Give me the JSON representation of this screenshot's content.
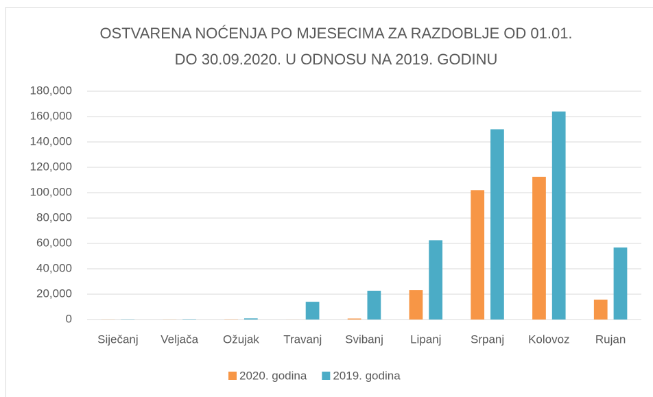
{
  "chart_data": {
    "type": "bar",
    "title": [
      "OSTVARENA NOĆENJA PO MJESECIMA ZA RAZDOBLJE OD 01.01.",
      "DO 30.09.2020. U ODNOSU NA 2019. GODINU"
    ],
    "categories": [
      "Siječanj",
      "Veljača",
      "Ožujak",
      "Travanj",
      "Svibanj",
      "Lipanj",
      "Srpanj",
      "Kolovoz",
      "Rujan"
    ],
    "series": [
      {
        "name": "2020. godina",
        "color": "#f79646",
        "values": [
          100,
          100,
          200,
          50,
          800,
          23200,
          102000,
          112500,
          15700
        ]
      },
      {
        "name": "2019. godina",
        "color": "#4bacc6",
        "values": [
          200,
          300,
          900,
          14000,
          22700,
          62500,
          150000,
          164000,
          56800
        ]
      }
    ],
    "ylim": [
      0,
      180000
    ],
    "yticks": [
      0,
      {
        "value": 20000,
        "label": "20,000"
      },
      {
        "value": 40000,
        "label": "40,000"
      },
      {
        "value": 60000,
        "label": "60,000"
      },
      {
        "value": 80000,
        "label": "80,000"
      },
      {
        "value": 100000,
        "label": "100,000"
      },
      {
        "value": 120000,
        "label": "120,000"
      },
      {
        "value": 140000,
        "label": "140,000"
      },
      {
        "value": 160000,
        "label": "160,000"
      },
      {
        "value": 180000,
        "label": "180,000"
      }
    ],
    "grid": true,
    "legend": "bottom"
  }
}
